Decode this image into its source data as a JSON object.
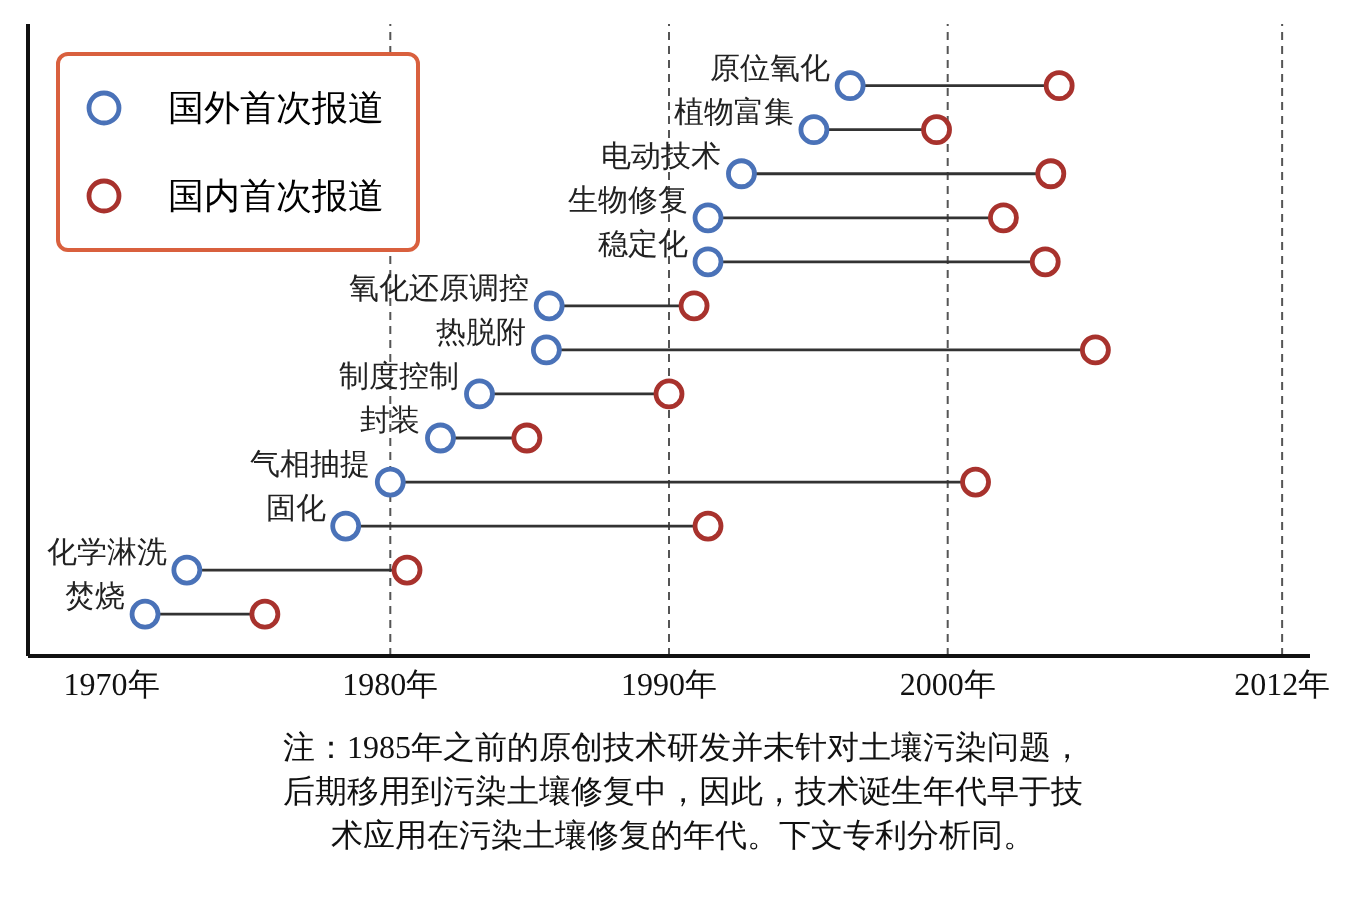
{
  "chart_data": {
    "type": "scatter",
    "orientation": "horizontal",
    "grid": false,
    "categories": [
      "原位氧化",
      "植物富集",
      "电动技术",
      "生物修复",
      "稳定化",
      "氧化还原调控",
      "热脱附",
      "制度控制",
      "封装",
      "气相抽提",
      "固化",
      "化学淋洗",
      "焚烧"
    ],
    "series": [
      {
        "name": "国外首次报道",
        "color": "#4a72b8",
        "values": [
          1996.5,
          1995.2,
          1992.6,
          1991.4,
          1991.4,
          1985.7,
          1985.6,
          1983.2,
          1981.8,
          1980.0,
          1978.4,
          1972.7,
          1971.2
        ]
      },
      {
        "name": "国内首次报道",
        "color": "#a8322d",
        "values": [
          2004.0,
          1999.6,
          2003.7,
          2002.0,
          2003.5,
          1990.9,
          2005.3,
          1990.0,
          1984.9,
          2001.0,
          1991.4,
          1980.6,
          1975.5
        ]
      }
    ],
    "xlim": [
      1967,
      2013
    ],
    "xticks": [
      {
        "value": 1970,
        "label": "1970年"
      },
      {
        "value": 1980,
        "label": "1980年"
      },
      {
        "value": 1990,
        "label": "1990年"
      },
      {
        "value": 2000,
        "label": "2000年"
      },
      {
        "value": 2012,
        "label": "2012年"
      }
    ],
    "ref_lines": [
      {
        "axis": "x",
        "value": 1980,
        "line_style": "dashed"
      },
      {
        "axis": "x",
        "value": 1990,
        "line_style": "dashed"
      },
      {
        "axis": "x",
        "value": 2000,
        "line_style": "dashed"
      },
      {
        "axis": "x",
        "value": 2012,
        "line_style": "dashed"
      }
    ],
    "marker": "circle",
    "legend": "top left",
    "annotations": [
      "注：1985年之前的原创技术研发并未针对土壤污染问题，后期移用到污染土壤修复中，因此，技术诞生年代早于技术应用在污染土壤修复的年代。下文专利分析同。"
    ]
  }
}
